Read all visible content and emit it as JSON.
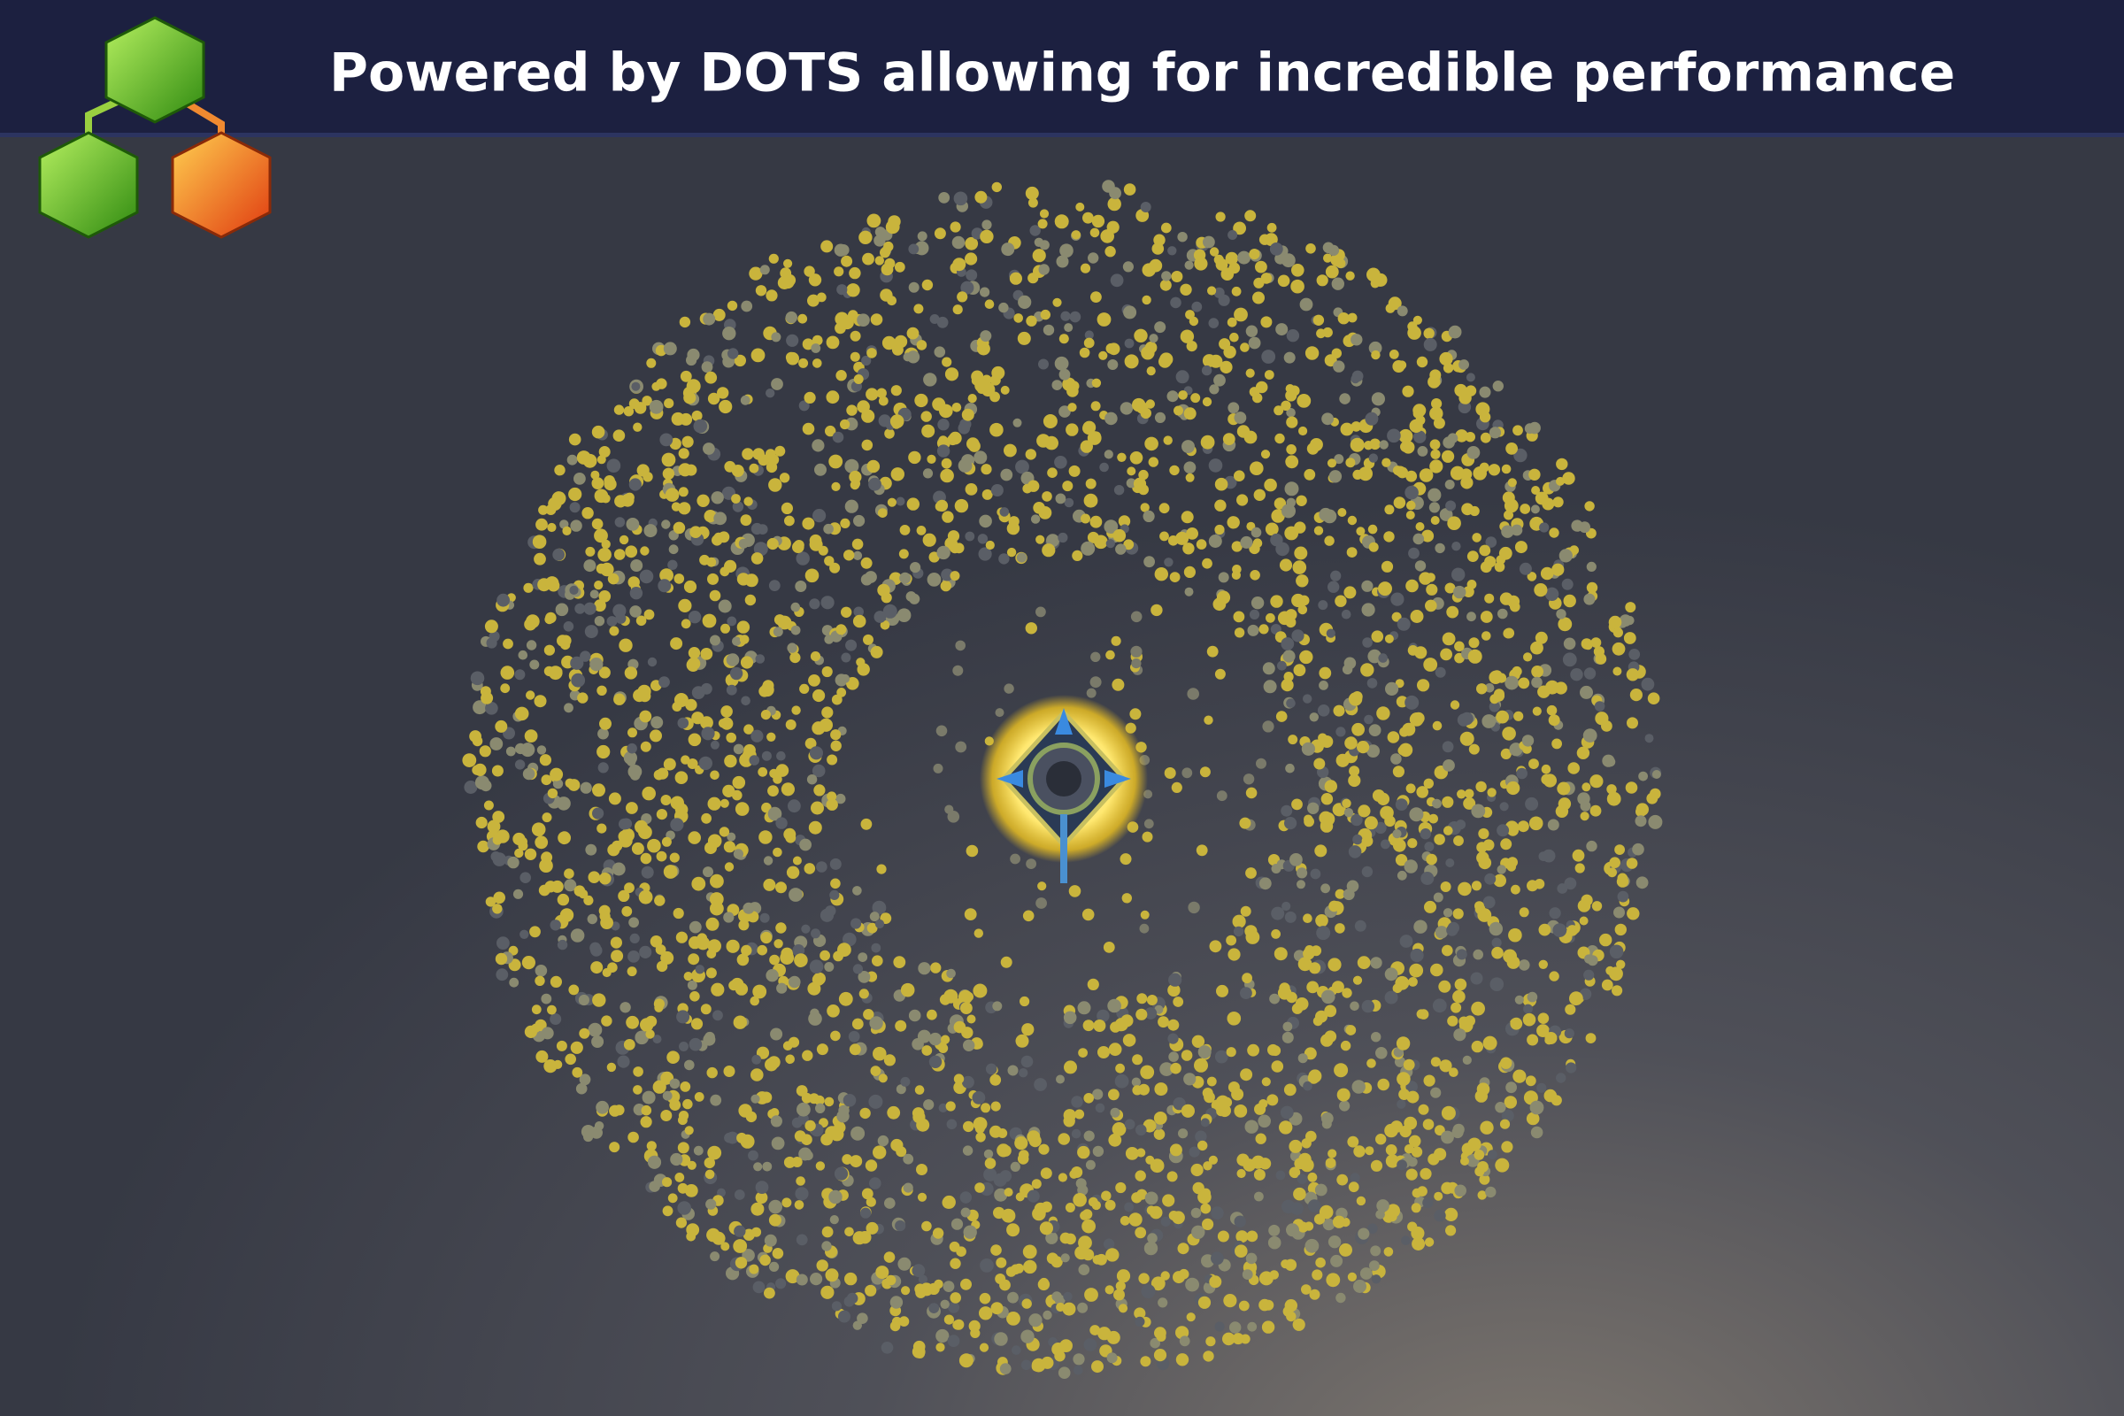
{
  "header": {
    "title": "Powered by DOTS allowing for incredible performance"
  }
}
